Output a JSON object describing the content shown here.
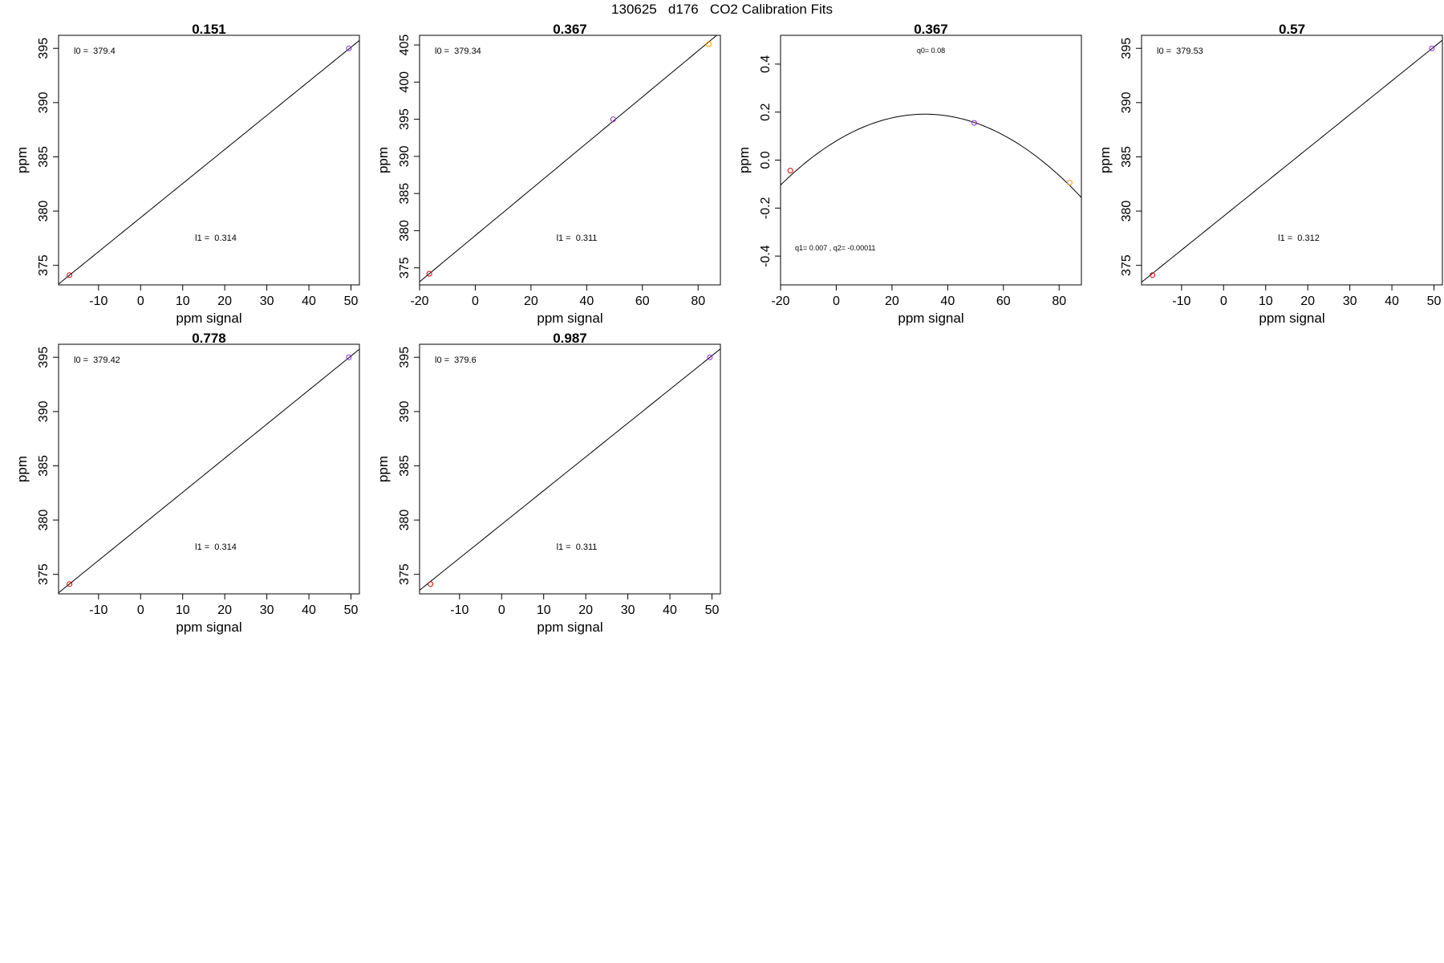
{
  "suptitle": "130625   d176   CO2 Calibration Fits",
  "colors": {
    "low": "#dd0000",
    "mid": "#8a2be2",
    "high": "#ff9900",
    "line": "#000000"
  },
  "chart_data": [
    {
      "type": "scatter",
      "title": "0.151",
      "xlabel": "ppm signal",
      "ylabel": "ppm",
      "xlim": [
        -19.5,
        52
      ],
      "ylim": [
        373.2,
        396.2
      ],
      "xticks": [
        "-10",
        "0",
        "10",
        "20",
        "30",
        "40",
        "50"
      ],
      "xtick_values": [
        -10,
        0,
        10,
        20,
        30,
        40,
        50
      ],
      "yticks": [
        "375",
        "380",
        "385",
        "390",
        "395"
      ],
      "ytick_values": [
        375,
        380,
        385,
        390,
        395
      ],
      "points": [
        {
          "x": -16.9,
          "y": 374.1,
          "color": "low"
        },
        {
          "x": 49.5,
          "y": 395.0,
          "color": "mid"
        }
      ],
      "fit": {
        "kind": "linear",
        "intercept": 379.4,
        "slope": 0.314
      },
      "annotations": [
        {
          "text": "l0 =  379.4",
          "pos": "top-left"
        },
        {
          "text": "l1 =  0.314",
          "pos": "lower-mid"
        }
      ]
    },
    {
      "type": "scatter",
      "title": "0.367",
      "xlabel": "ppm signal",
      "ylabel": "ppm",
      "xlim": [
        -20,
        88
      ],
      "ylim": [
        372.7,
        406.3
      ],
      "xticks": [
        "-20",
        "0",
        "20",
        "40",
        "60",
        "80"
      ],
      "xtick_values": [
        -20,
        0,
        20,
        40,
        60,
        80
      ],
      "yticks": [
        "375",
        "380",
        "385",
        "390",
        "395",
        "400",
        "405"
      ],
      "ytick_values": [
        375,
        380,
        385,
        390,
        395,
        400,
        405
      ],
      "points": [
        {
          "x": -16.5,
          "y": 374.2,
          "color": "low"
        },
        {
          "x": 49.5,
          "y": 395.0,
          "color": "mid"
        },
        {
          "x": 83.8,
          "y": 405.1,
          "color": "high"
        }
      ],
      "fit": {
        "kind": "linear",
        "intercept": 379.34,
        "slope": 0.311
      },
      "annotations": [
        {
          "text": "l0 =  379.34",
          "pos": "top-left"
        },
        {
          "text": "l1 =  0.311",
          "pos": "lower-mid"
        }
      ]
    },
    {
      "type": "scatter",
      "title": "0.367",
      "xlabel": "ppm signal",
      "ylabel": "ppm",
      "xlim": [
        -20,
        88
      ],
      "ylim": [
        -0.52,
        0.52
      ],
      "xticks": [
        "-20",
        "0",
        "20",
        "40",
        "60",
        "80"
      ],
      "xtick_values": [
        -20,
        0,
        20,
        40,
        60,
        80
      ],
      "yticks": [
        "-0.4",
        "-0.2",
        "0.0",
        "0.2",
        "0.4"
      ],
      "ytick_values": [
        -0.4,
        -0.2,
        0.0,
        0.2,
        0.4
      ],
      "points": [
        {
          "x": -16.5,
          "y": -0.044,
          "color": "low"
        },
        {
          "x": 49.5,
          "y": 0.155,
          "color": "mid"
        },
        {
          "x": 83.8,
          "y": -0.094,
          "color": "high"
        }
      ],
      "fit": {
        "kind": "quadratic",
        "q0": 0.08,
        "q1": 0.007,
        "q2": -0.00011
      },
      "annotations": [
        {
          "text": "q0= 0.08",
          "pos": "top-center"
        },
        {
          "text": "q1= 0.007 , q2= -0.00011",
          "pos": "bottom-left"
        }
      ]
    },
    {
      "type": "scatter",
      "title": "0.57",
      "xlabel": "ppm signal",
      "ylabel": "ppm",
      "xlim": [
        -19.5,
        52
      ],
      "ylim": [
        373.2,
        396.2
      ],
      "xticks": [
        "-10",
        "0",
        "10",
        "20",
        "30",
        "40",
        "50"
      ],
      "xtick_values": [
        -10,
        0,
        10,
        20,
        30,
        40,
        50
      ],
      "yticks": [
        "375",
        "380",
        "385",
        "390",
        "395"
      ],
      "ytick_values": [
        375,
        380,
        385,
        390,
        395
      ],
      "points": [
        {
          "x": -16.9,
          "y": 374.1,
          "color": "low"
        },
        {
          "x": 49.5,
          "y": 395.0,
          "color": "mid"
        }
      ],
      "fit": {
        "kind": "linear",
        "intercept": 379.53,
        "slope": 0.312
      },
      "annotations": [
        {
          "text": "l0 =  379.53",
          "pos": "top-left"
        },
        {
          "text": "l1 =  0.312",
          "pos": "lower-mid"
        }
      ]
    },
    {
      "type": "scatter",
      "title": "0.778",
      "xlabel": "ppm signal",
      "ylabel": "ppm",
      "xlim": [
        -19.5,
        52
      ],
      "ylim": [
        373.2,
        396.2
      ],
      "xticks": [
        "-10",
        "0",
        "10",
        "20",
        "30",
        "40",
        "50"
      ],
      "xtick_values": [
        -10,
        0,
        10,
        20,
        30,
        40,
        50
      ],
      "yticks": [
        "375",
        "380",
        "385",
        "390",
        "395"
      ],
      "ytick_values": [
        375,
        380,
        385,
        390,
        395
      ],
      "points": [
        {
          "x": -16.9,
          "y": 374.1,
          "color": "low"
        },
        {
          "x": 49.5,
          "y": 395.0,
          "color": "mid"
        }
      ],
      "fit": {
        "kind": "linear",
        "intercept": 379.42,
        "slope": 0.314
      },
      "annotations": [
        {
          "text": "l0 =  379.42",
          "pos": "top-left"
        },
        {
          "text": "l1 =  0.314",
          "pos": "lower-mid"
        }
      ]
    },
    {
      "type": "scatter",
      "title": "0.987",
      "xlabel": "ppm signal",
      "ylabel": "ppm",
      "xlim": [
        -19.5,
        52
      ],
      "ylim": [
        373.2,
        396.2
      ],
      "xticks": [
        "-10",
        "0",
        "10",
        "20",
        "30",
        "40",
        "50"
      ],
      "xtick_values": [
        -10,
        0,
        10,
        20,
        30,
        40,
        50
      ],
      "yticks": [
        "375",
        "380",
        "385",
        "390",
        "395"
      ],
      "ytick_values": [
        375,
        380,
        385,
        390,
        395
      ],
      "points": [
        {
          "x": -16.9,
          "y": 374.1,
          "color": "low"
        },
        {
          "x": 49.5,
          "y": 395.0,
          "color": "mid"
        }
      ],
      "fit": {
        "kind": "linear",
        "intercept": 379.6,
        "slope": 0.311
      },
      "annotations": [
        {
          "text": "l0 =  379.6",
          "pos": "top-left"
        },
        {
          "text": "l1 =  0.311",
          "pos": "lower-mid"
        }
      ]
    }
  ]
}
